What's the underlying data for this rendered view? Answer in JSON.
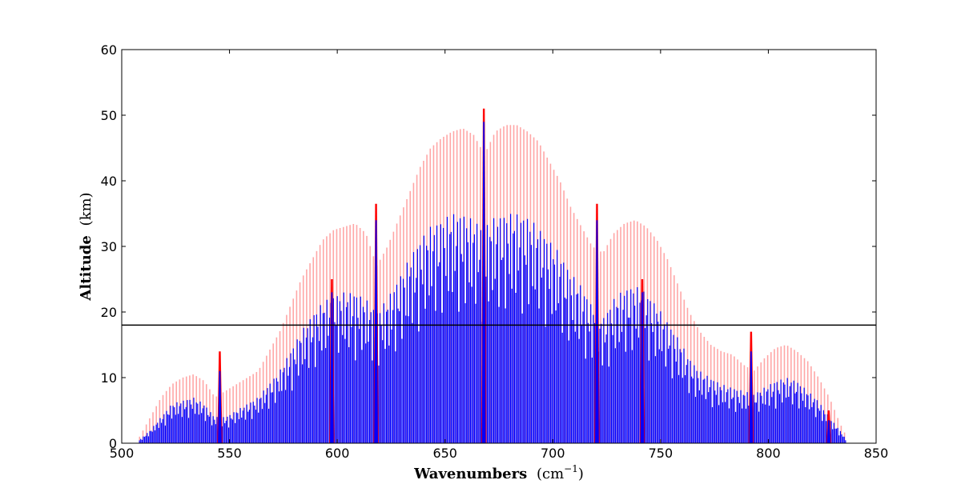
{
  "chart_data": {
    "type": "bar",
    "title": "",
    "xlabel": "Wavenumbers",
    "xlabel_unit": "(cm",
    "xlabel_unit_exp": "−1",
    "xlabel_unit_close": ")",
    "ylabel": "Altitude",
    "ylabel_unit": "(km)",
    "xlim": [
      500,
      850
    ],
    "ylim": [
      0,
      60
    ],
    "xticks": [
      500,
      550,
      600,
      650,
      700,
      750,
      800,
      850
    ],
    "yticks": [
      0,
      10,
      20,
      30,
      40,
      50,
      60
    ],
    "grid": false,
    "legend": "none",
    "reference_line": {
      "y": 18,
      "color": "#000000"
    },
    "colors": {
      "red": "#ff0000",
      "blue": "#0000ff",
      "frame": "#000000"
    },
    "series": [
      {
        "color": "#ff0000",
        "opacity": 0.35,
        "envelope": [
          [
            508,
            1
          ],
          [
            513,
            4
          ],
          [
            518,
            7
          ],
          [
            523,
            9
          ],
          [
            528,
            10
          ],
          [
            533,
            10.5
          ],
          [
            538,
            9.5
          ],
          [
            543,
            7
          ],
          [
            548,
            8
          ],
          [
            553,
            9
          ],
          [
            558,
            10
          ],
          [
            563,
            11
          ],
          [
            568,
            14
          ],
          [
            573,
            17
          ],
          [
            578,
            21
          ],
          [
            583,
            25
          ],
          [
            588,
            28
          ],
          [
            593,
            31
          ],
          [
            598,
            32.5
          ],
          [
            603,
            33
          ],
          [
            608,
            33.5
          ],
          [
            613,
            32
          ],
          [
            618,
            27
          ],
          [
            623,
            30
          ],
          [
            628,
            34
          ],
          [
            633,
            38
          ],
          [
            638,
            42
          ],
          [
            643,
            45
          ],
          [
            648,
            46.5
          ],
          [
            653,
            47.5
          ],
          [
            658,
            48
          ],
          [
            663,
            47
          ],
          [
            668,
            44
          ],
          [
            673,
            47.5
          ],
          [
            678,
            48.5
          ],
          [
            683,
            48.5
          ],
          [
            688,
            47.5
          ],
          [
            693,
            46
          ],
          [
            698,
            43
          ],
          [
            703,
            40
          ],
          [
            708,
            36
          ],
          [
            713,
            33
          ],
          [
            718,
            30
          ],
          [
            723,
            29
          ],
          [
            728,
            32
          ],
          [
            733,
            33.5
          ],
          [
            738,
            34
          ],
          [
            743,
            33
          ],
          [
            748,
            31
          ],
          [
            753,
            28
          ],
          [
            758,
            24
          ],
          [
            763,
            20
          ],
          [
            768,
            17
          ],
          [
            773,
            15
          ],
          [
            778,
            14
          ],
          [
            783,
            13.5
          ],
          [
            788,
            12
          ],
          [
            793,
            11
          ],
          [
            798,
            13
          ],
          [
            803,
            14.5
          ],
          [
            808,
            15
          ],
          [
            813,
            14
          ],
          [
            818,
            12.5
          ],
          [
            823,
            10
          ],
          [
            828,
            7
          ],
          [
            833,
            3
          ],
          [
            836,
            1
          ]
        ]
      },
      {
        "color": "#0000ff",
        "opacity": 1,
        "envelope": [
          [
            508,
            0.5
          ],
          [
            513,
            2
          ],
          [
            518,
            4
          ],
          [
            523,
            6
          ],
          [
            528,
            6.5
          ],
          [
            533,
            7
          ],
          [
            538,
            6
          ],
          [
            543,
            4
          ],
          [
            548,
            4
          ],
          [
            553,
            5
          ],
          [
            558,
            6
          ],
          [
            563,
            7
          ],
          [
            568,
            9
          ],
          [
            573,
            11
          ],
          [
            578,
            14
          ],
          [
            583,
            17
          ],
          [
            588,
            19.5
          ],
          [
            593,
            21.5
          ],
          [
            598,
            22.5
          ],
          [
            603,
            23
          ],
          [
            608,
            23
          ],
          [
            613,
            22
          ],
          [
            618,
            20
          ],
          [
            623,
            22
          ],
          [
            628,
            25
          ],
          [
            633,
            28
          ],
          [
            638,
            31
          ],
          [
            643,
            33
          ],
          [
            648,
            34
          ],
          [
            653,
            35
          ],
          [
            658,
            35
          ],
          [
            663,
            34
          ],
          [
            668,
            33
          ],
          [
            673,
            34.5
          ],
          [
            678,
            35
          ],
          [
            683,
            35
          ],
          [
            688,
            34.5
          ],
          [
            693,
            33
          ],
          [
            698,
            31
          ],
          [
            703,
            29
          ],
          [
            708,
            26
          ],
          [
            713,
            24
          ],
          [
            718,
            21
          ],
          [
            723,
            19
          ],
          [
            728,
            22
          ],
          [
            733,
            23.5
          ],
          [
            738,
            24
          ],
          [
            743,
            23
          ],
          [
            748,
            21
          ],
          [
            753,
            18.5
          ],
          [
            758,
            16
          ],
          [
            763,
            13
          ],
          [
            768,
            11
          ],
          [
            773,
            10
          ],
          [
            778,
            9
          ],
          [
            783,
            8.5
          ],
          [
            788,
            8
          ],
          [
            793,
            7.5
          ],
          [
            798,
            8.5
          ],
          [
            803,
            9.5
          ],
          [
            808,
            10
          ],
          [
            813,
            9.5
          ],
          [
            818,
            8
          ],
          [
            823,
            6.5
          ],
          [
            828,
            4
          ],
          [
            833,
            2
          ],
          [
            836,
            0.5
          ]
        ]
      }
    ],
    "spikes": [
      {
        "x": 545.5,
        "red": 14,
        "blue": 11
      },
      {
        "x": 597.5,
        "red": 25,
        "blue": 23
      },
      {
        "x": 618,
        "red": 36.5,
        "blue": 34
      },
      {
        "x": 668,
        "red": 51,
        "blue": 49
      },
      {
        "x": 720.5,
        "red": 36.5,
        "blue": 34
      },
      {
        "x": 741.5,
        "red": 25,
        "blue": 23
      },
      {
        "x": 792,
        "red": 17,
        "blue": 14
      },
      {
        "x": 828,
        "red": 5,
        "blue": 3.5
      }
    ]
  }
}
